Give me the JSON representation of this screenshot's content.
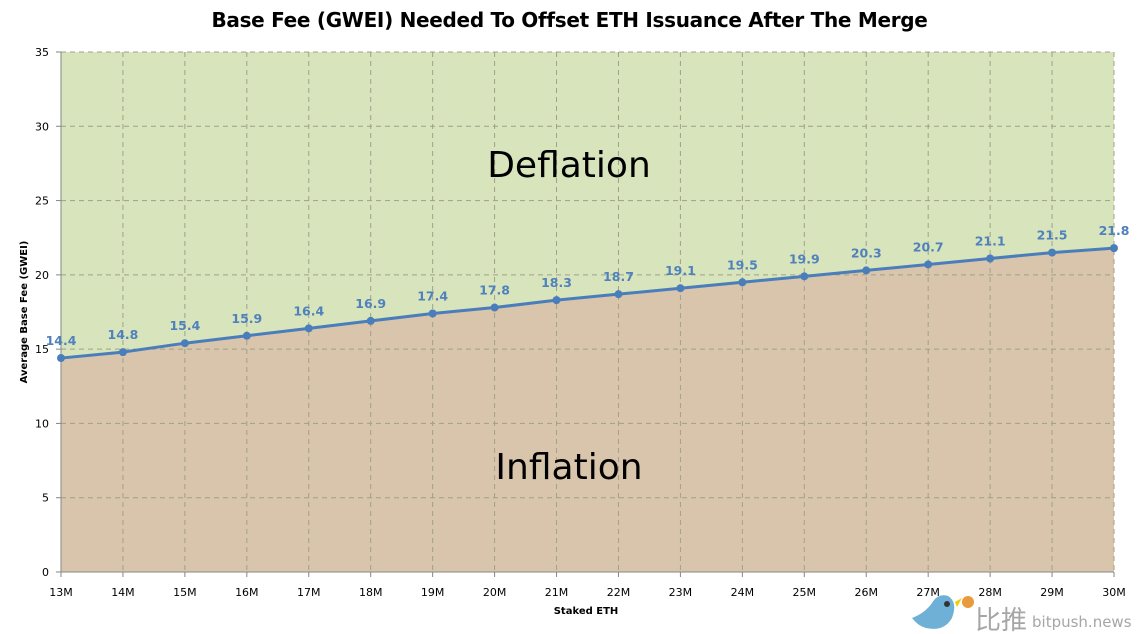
{
  "chart_data": {
    "type": "line",
    "title": "Base Fee (GWEI) Needed To Offset ETH Issuance After The Merge",
    "xlabel": "Staked ETH",
    "ylabel": "Average Base Fee (GWEI)",
    "categories": [
      "13M",
      "14M",
      "15M",
      "16M",
      "17M",
      "18M",
      "19M",
      "20M",
      "21M",
      "22M",
      "23M",
      "24M",
      "25M",
      "26M",
      "27M",
      "28M",
      "29M",
      "30M"
    ],
    "values": [
      14.4,
      14.8,
      15.4,
      15.9,
      16.4,
      16.9,
      17.4,
      17.8,
      18.3,
      18.7,
      19.1,
      19.5,
      19.9,
      20.3,
      20.7,
      21.1,
      21.5,
      21.8
    ],
    "ylim": [
      0,
      35
    ],
    "yticks": [
      0,
      5,
      10,
      15,
      20,
      25,
      30,
      35
    ],
    "grid": true,
    "data_labels": true,
    "annotations": {
      "above": "Deflation",
      "below": "Inflation"
    },
    "colors": {
      "line": "#4a7ebb",
      "label": "#4f81bd",
      "above_fill": "#d8e4bc",
      "below_fill": "#d9c5ac"
    }
  },
  "watermark": {
    "cn": "比推",
    "site": "bitpush.news"
  }
}
